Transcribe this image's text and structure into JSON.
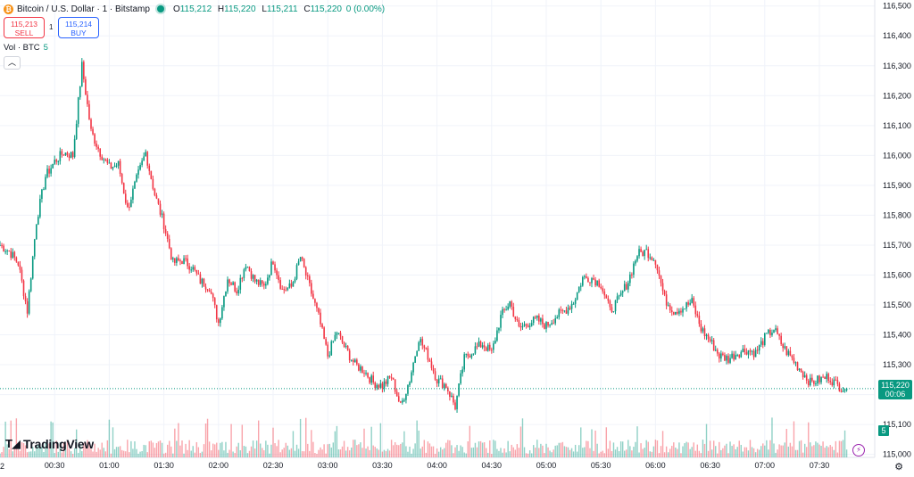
{
  "header": {
    "coin_icon": "bitcoin-icon",
    "title": "Bitcoin / U.S. Dollar · 1 · Bitstamp",
    "ohlc": {
      "o_label": "O",
      "o_value": "115,212",
      "h_label": "H",
      "h_value": "115,220",
      "l_label": "L",
      "l_value": "115,211",
      "c_label": "C",
      "c_value": "115,220",
      "change": "0 (0.00%)"
    }
  },
  "trade": {
    "sell_price": "115,213",
    "sell_label": "SELL",
    "spread": "1",
    "buy_price": "115,214",
    "buy_label": "BUY"
  },
  "volume_legend": {
    "label": "Vol · BTC",
    "value": "5"
  },
  "brand": {
    "name": "TradingView"
  },
  "price_tag": {
    "price": "115,220",
    "countdown": "00:06"
  },
  "volume_tag": "5",
  "x_edge_label": "2",
  "colors": {
    "up": "#089981",
    "down": "#f23645",
    "grid": "#f0f3fa"
  },
  "chart_data": {
    "type": "candlestick",
    "title": "Bitcoin / U.S. Dollar · 1 · Bitstamp",
    "y_ticks": [
      115000,
      115100,
      115200,
      115300,
      115400,
      115500,
      115600,
      115700,
      115800,
      115900,
      116000,
      116100,
      116200,
      116300,
      116400,
      116500
    ],
    "y_tick_labels": [
      "115,000",
      "115,100",
      "115,200",
      "115,300",
      "115,400",
      "115,500",
      "115,600",
      "115,700",
      "115,800",
      "115,900",
      "116,000",
      "116,100",
      "116,200",
      "116,300",
      "116,400",
      "116,500"
    ],
    "x_ticks": [
      "00:30",
      "01:00",
      "01:30",
      "02:00",
      "02:30",
      "03:00",
      "03:30",
      "04:00",
      "04:30",
      "05:00",
      "05:30",
      "06:00",
      "06:30",
      "07:00",
      "07:30"
    ],
    "ylim": [
      114990,
      116520
    ],
    "last_price": 115220,
    "price_path": [
      [
        "00:00",
        115700
      ],
      [
        "00:05",
        115680
      ],
      [
        "00:10",
        115640
      ],
      [
        "00:15",
        115480
      ],
      [
        "00:20",
        115780
      ],
      [
        "00:25",
        115930
      ],
      [
        "00:30",
        115980
      ],
      [
        "00:35",
        116010
      ],
      [
        "00:40",
        116000
      ],
      [
        "00:45",
        116300
      ],
      [
        "00:50",
        116080
      ],
      [
        "00:55",
        116010
      ],
      [
        "01:00",
        115960
      ],
      [
        "01:05",
        115970
      ],
      [
        "01:10",
        115820
      ],
      [
        "01:15",
        115920
      ],
      [
        "01:20",
        116010
      ],
      [
        "01:25",
        115870
      ],
      [
        "01:30",
        115770
      ],
      [
        "01:35",
        115640
      ],
      [
        "01:40",
        115650
      ],
      [
        "01:45",
        115630
      ],
      [
        "01:50",
        115580
      ],
      [
        "01:55",
        115560
      ],
      [
        "02:00",
        115440
      ],
      [
        "02:05",
        115590
      ],
      [
        "02:10",
        115550
      ],
      [
        "02:15",
        115640
      ],
      [
        "02:20",
        115580
      ],
      [
        "02:25",
        115560
      ],
      [
        "02:30",
        115650
      ],
      [
        "02:35",
        115550
      ],
      [
        "02:40",
        115560
      ],
      [
        "02:45",
        115660
      ],
      [
        "02:50",
        115560
      ],
      [
        "02:55",
        115460
      ],
      [
        "03:00",
        115330
      ],
      [
        "03:05",
        115410
      ],
      [
        "03:10",
        115350
      ],
      [
        "03:15",
        115300
      ],
      [
        "03:20",
        115280
      ],
      [
        "03:25",
        115240
      ],
      [
        "03:30",
        115230
      ],
      [
        "03:35",
        115260
      ],
      [
        "03:40",
        115160
      ],
      [
        "03:45",
        115250
      ],
      [
        "03:50",
        115390
      ],
      [
        "03:55",
        115330
      ],
      [
        "04:00",
        115250
      ],
      [
        "04:05",
        115230
      ],
      [
        "04:10",
        115160
      ],
      [
        "04:15",
        115320
      ],
      [
        "04:20",
        115350
      ],
      [
        "04:25",
        115370
      ],
      [
        "04:30",
        115340
      ],
      [
        "04:35",
        115460
      ],
      [
        "04:40",
        115510
      ],
      [
        "04:45",
        115420
      ],
      [
        "04:50",
        115440
      ],
      [
        "04:55",
        115450
      ],
      [
        "05:00",
        115430
      ],
      [
        "05:05",
        115460
      ],
      [
        "05:10",
        115480
      ],
      [
        "05:15",
        115510
      ],
      [
        "05:20",
        115590
      ],
      [
        "05:25",
        115590
      ],
      [
        "05:30",
        115570
      ],
      [
        "05:35",
        115480
      ],
      [
        "05:40",
        115520
      ],
      [
        "05:45",
        115580
      ],
      [
        "05:50",
        115670
      ],
      [
        "05:55",
        115680
      ],
      [
        "06:00",
        115650
      ],
      [
        "06:05",
        115520
      ],
      [
        "06:10",
        115480
      ],
      [
        "06:15",
        115490
      ],
      [
        "06:20",
        115510
      ],
      [
        "06:25",
        115420
      ],
      [
        "06:30",
        115380
      ],
      [
        "06:35",
        115330
      ],
      [
        "06:40",
        115320
      ],
      [
        "06:45",
        115340
      ],
      [
        "06:50",
        115350
      ],
      [
        "06:55",
        115340
      ],
      [
        "07:00",
        115390
      ],
      [
        "07:05",
        115420
      ],
      [
        "07:10",
        115360
      ],
      [
        "07:15",
        115320
      ],
      [
        "07:20",
        115280
      ],
      [
        "07:25",
        115240
      ],
      [
        "07:30",
        115250
      ],
      [
        "07:35",
        115260
      ],
      [
        "07:40",
        115230
      ],
      [
        "07:45",
        115220
      ]
    ]
  }
}
